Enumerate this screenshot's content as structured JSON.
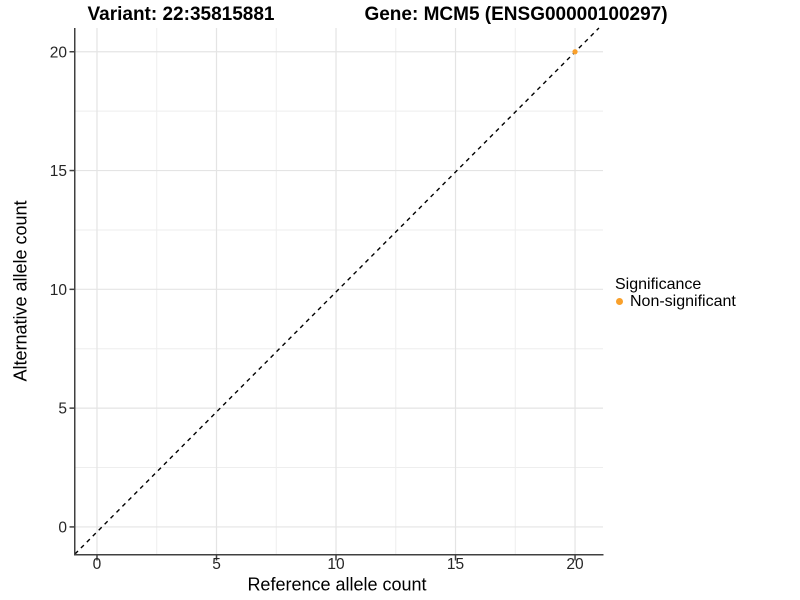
{
  "figure": {
    "title_left": "Variant: 22:35815881",
    "title_right": "Gene: MCM5 (ENSG00000100297)"
  },
  "legend": {
    "title": "Significance",
    "items": [
      {
        "label": "Non-significant",
        "color": "#F9A02B",
        "marker": "dot"
      }
    ]
  },
  "chart_data": {
    "type": "scatter",
    "titles": [
      "Variant: 22:35815881",
      "Gene: MCM5 (ENSG00000100297)"
    ],
    "xlabel": "Reference allele count",
    "ylabel": "Alternative allele count",
    "points": [
      {
        "x": 20,
        "y": 20,
        "series": "Non-significant",
        "color": "#F9A02B"
      }
    ],
    "xlim": [
      -0.92,
      21.17
    ],
    "ylim": [
      -1.14,
      21.0
    ],
    "xticks": [
      0,
      5,
      10,
      15,
      20
    ],
    "yticks": [
      0,
      5,
      10,
      15,
      20
    ],
    "xticks_minor": [
      2.5,
      7.5,
      12.5,
      17.5
    ],
    "yticks_minor": [
      2.5,
      7.5,
      12.5,
      17.5
    ],
    "reference_line": {
      "type": "identity",
      "slope": 1,
      "intercept": 0,
      "style": "dashed",
      "color": "#000000"
    },
    "grid": "major+minor",
    "legend_position": "right",
    "colors": {
      "grid_major": "#e4e4e4",
      "grid_minor": "#eeeeee",
      "axis_line": "#404040",
      "tick_mark": "#404040",
      "tick_label": "#262626",
      "point": "#F9A02B"
    }
  }
}
